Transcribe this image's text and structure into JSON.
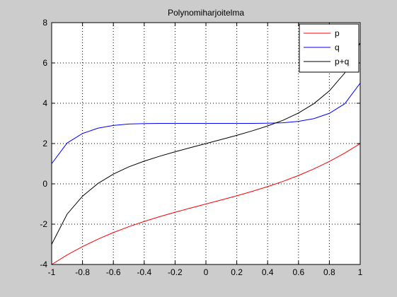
{
  "chart_data": {
    "type": "line",
    "title": "Polynomiharjoitelma",
    "xlabel": "",
    "ylabel": "",
    "xlim": [
      -1,
      1
    ],
    "ylim": [
      -4,
      8
    ],
    "xticks": [
      -1,
      -0.8,
      -0.6,
      -0.4,
      -0.2,
      0,
      0.2,
      0.4,
      0.6,
      0.8,
      1
    ],
    "xtick_labels": [
      "-1",
      "-0.8",
      "-0.6",
      "-0.4",
      "-0.2",
      "0",
      "0.2",
      "0.4",
      "0.6",
      "0.8",
      "1"
    ],
    "yticks": [
      -4,
      -2,
      0,
      2,
      4,
      6,
      8
    ],
    "ytick_labels": [
      "-4",
      "-2",
      "0",
      "2",
      "4",
      "6",
      "8"
    ],
    "grid": true,
    "grid_style": "dotted",
    "legend_position": "top-right",
    "x": [
      -1,
      -0.9,
      -0.8,
      -0.7,
      -0.6,
      -0.5,
      -0.4,
      -0.3,
      -0.2,
      -0.1,
      0,
      0.1,
      0.2,
      0.3,
      0.4,
      0.5,
      0.6,
      0.7,
      0.8,
      0.9,
      1
    ],
    "series": [
      {
        "name": "p",
        "color": "#ff0000",
        "values": [
          -4,
          -3.529,
          -3.112,
          -2.743,
          -2.416,
          -2.125,
          -1.864,
          -1.627,
          -1.408,
          -1.201,
          -1,
          -0.799,
          -0.592,
          -0.373,
          -0.136,
          0.125,
          0.416,
          0.743,
          1.112,
          1.529,
          2
        ]
      },
      {
        "name": "q",
        "color": "#0000ff",
        "values": [
          1,
          2.025,
          2.5,
          2.762,
          2.9,
          2.969,
          2.99,
          2.998,
          3,
          3,
          3,
          3,
          3,
          3.002,
          3.01,
          3.031,
          3.1,
          3.238,
          3.5,
          3.975,
          5
        ]
      },
      {
        "name": "p+q",
        "color": "#000000",
        "values": [
          -3,
          -1.504,
          -0.612,
          0.019,
          0.484,
          0.844,
          1.126,
          1.371,
          1.592,
          1.799,
          2,
          2.201,
          2.408,
          2.629,
          2.874,
          3.156,
          3.516,
          3.981,
          4.612,
          5.504,
          7
        ]
      }
    ]
  }
}
